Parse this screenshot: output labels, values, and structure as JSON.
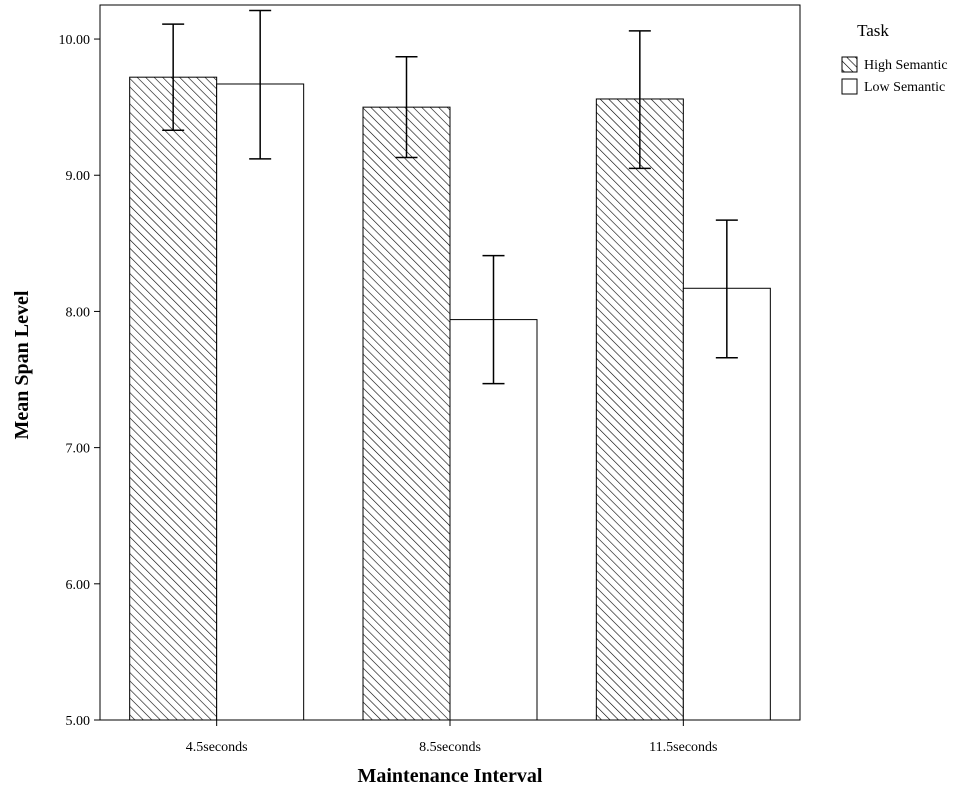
{
  "chart_data": {
    "type": "bar",
    "title": "",
    "xlabel": "Maintenance Interval",
    "ylabel": "Mean Span Level",
    "categories": [
      "4.5seconds",
      "8.5seconds",
      "11.5seconds"
    ],
    "ylim": [
      5.0,
      10.25
    ],
    "yticks": [
      "5.00",
      "6.00",
      "7.00",
      "8.00",
      "9.00",
      "10.00"
    ],
    "legend": {
      "title": "Task",
      "placement": "top-right, outside plot"
    },
    "grid": false,
    "series": [
      {
        "name": "High Semantic",
        "fill": "hatched",
        "values": [
          9.72,
          9.5,
          9.56
        ],
        "error_low": [
          9.33,
          9.13,
          9.05
        ],
        "error_high": [
          10.11,
          9.87,
          10.06
        ]
      },
      {
        "name": "Low Semantic",
        "fill": "#ffffff",
        "values": [
          9.67,
          7.94,
          8.17
        ],
        "error_low": [
          9.12,
          7.47,
          7.66
        ],
        "error_high": [
          10.21,
          8.41,
          8.67
        ]
      }
    ]
  }
}
